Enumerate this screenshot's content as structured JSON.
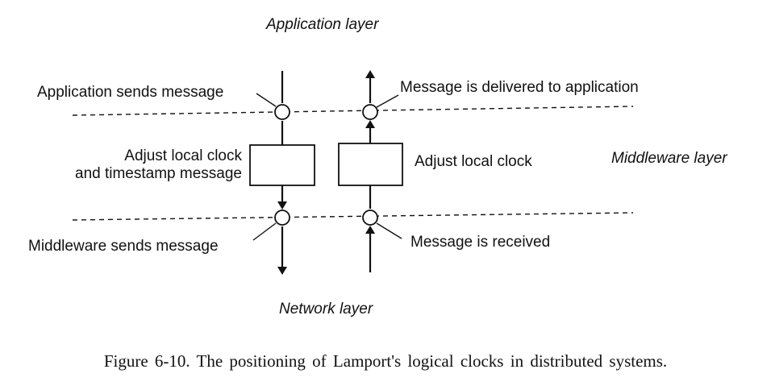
{
  "diagram": {
    "layers": {
      "application": "Application layer",
      "middleware": "Middleware layer",
      "network": "Network layer"
    },
    "left_column": {
      "top_event": "Application sends message",
      "box_label_line1": "Adjust local clock",
      "box_label_line2": "and timestamp message",
      "bottom_event": "Middleware sends message"
    },
    "right_column": {
      "top_event": "Message is delivered to application",
      "box_label": "Adjust local clock",
      "bottom_event": "Message is received"
    }
  },
  "caption": "Figure  6-10.  The positioning  of Lamport's  logical  clocks  in distributed  systems."
}
